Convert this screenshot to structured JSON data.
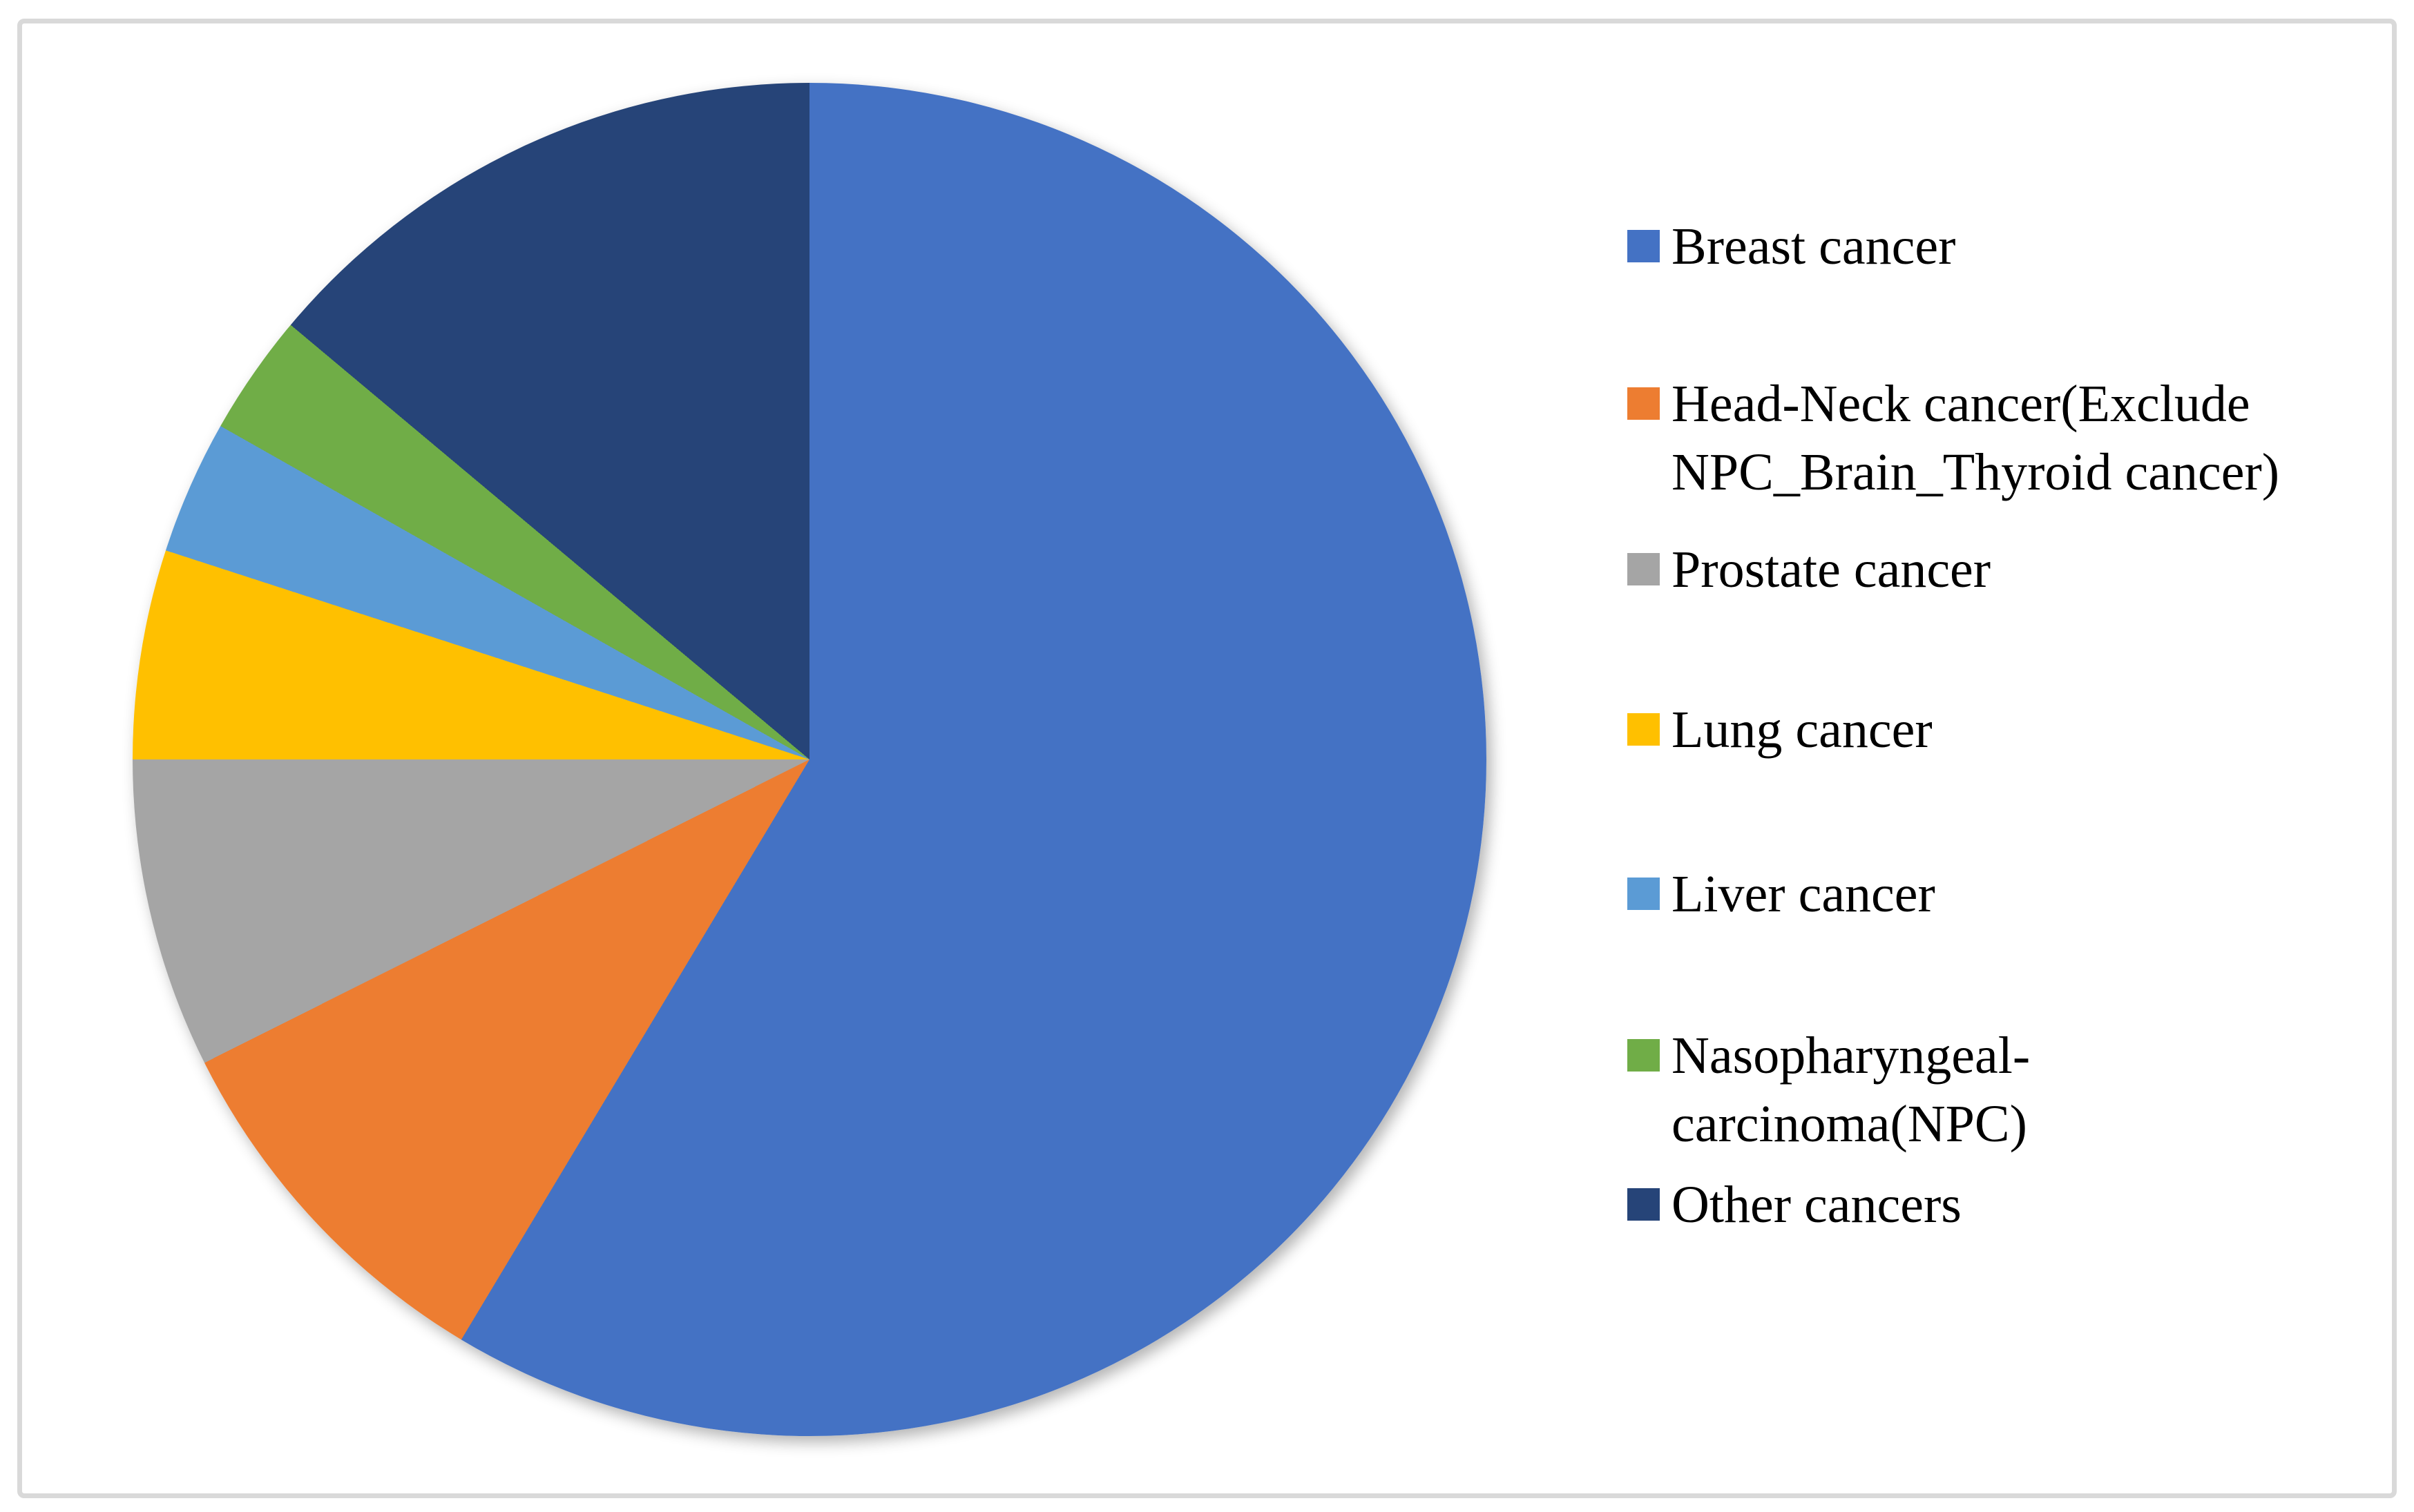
{
  "chart_data": {
    "type": "pie",
    "title": "",
    "categories": [
      "Breast cancer",
      "Head-Neck cancer(Exclude NPC_Brain_Thyroid cancer)",
      "Prostate cancer",
      "Lung cancer",
      "Liver cancer",
      "Nasopharyngeal-carcinoma(NPC)",
      "Other cancers"
    ],
    "values": [
      58.6,
      9.0,
      7.4,
      5.0,
      3.2,
      2.9,
      13.9
    ],
    "unit": "percent-of-whole (estimated from slice angles)",
    "colors": [
      "#4472C4",
      "#ED7D31",
      "#A5A5A5",
      "#FFC000",
      "#5B9BD5",
      "#70AD47",
      "#264478"
    ],
    "start_angle_deg": 0,
    "direction": "clockwise",
    "legend_position": "right",
    "data_labels": false
  },
  "legend": {
    "items": [
      {
        "label": "Breast cancer",
        "lines": [
          "Breast cancer"
        ],
        "color": "#4472C4"
      },
      {
        "label": "Head-Neck cancer(Exclude NPC_Brain_Thyroid cancer)",
        "lines": [
          "Head-Neck cancer(Exclude",
          "NPC_Brain_Thyroid cancer)"
        ],
        "color": "#ED7D31"
      },
      {
        "label": "Prostate cancer",
        "lines": [
          "Prostate cancer"
        ],
        "color": "#A5A5A5"
      },
      {
        "label": "Lung cancer",
        "lines": [
          "Lung cancer"
        ],
        "color": "#FFC000"
      },
      {
        "label": "Liver cancer",
        "lines": [
          "Liver cancer"
        ],
        "color": "#5B9BD5"
      },
      {
        "label": "Nasopharyngeal-carcinoma(NPC)",
        "lines": [
          "Nasopharyngeal-",
          "carcinoma(NPC)"
        ],
        "color": "#70AD47"
      },
      {
        "label": "Other cancers",
        "lines": [
          "Other cancers"
        ],
        "color": "#264478"
      }
    ]
  }
}
